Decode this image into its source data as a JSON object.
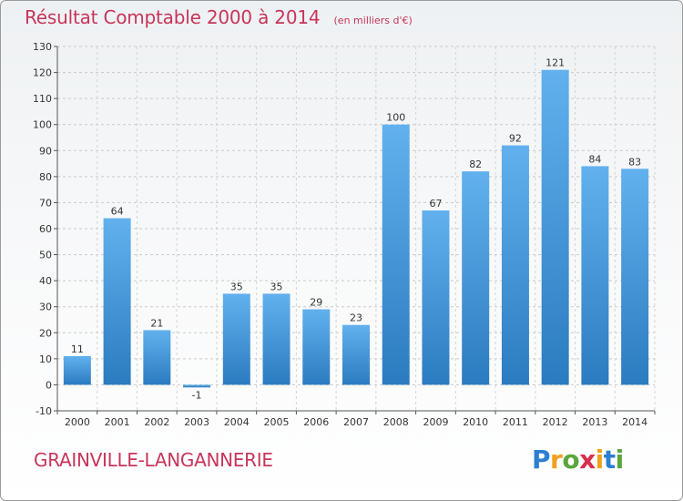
{
  "header": {
    "title": "Résultat Comptable 2000 à 2014",
    "subtitle": "(en milliers d'€)"
  },
  "footer": {
    "city": "GRAINVILLE-LANGANNERIE",
    "logo": "Proxiti"
  },
  "colors": {
    "title": "#c8355a",
    "bar_light": "#5aaaea",
    "bar_dark": "#2e7fc4",
    "grid": "#c9c9c9"
  },
  "chart_data": {
    "type": "bar",
    "categories": [
      "2000",
      "2001",
      "2002",
      "2003",
      "2004",
      "2005",
      "2006",
      "2007",
      "2008",
      "2009",
      "2010",
      "2011",
      "2012",
      "2013",
      "2014"
    ],
    "values": [
      11,
      64,
      21,
      -1,
      35,
      35,
      29,
      23,
      100,
      67,
      82,
      92,
      121,
      84,
      83
    ],
    "value_labels": [
      "11",
      "64",
      "21",
      "-1",
      "35",
      "35",
      "29",
      "23",
      "100",
      "67",
      "82",
      "92",
      "121",
      "84",
      "83"
    ],
    "y_ticks": [
      "-10",
      "0",
      "10",
      "20",
      "30",
      "40",
      "50",
      "60",
      "70",
      "80",
      "90",
      "100",
      "110",
      "120",
      "130"
    ],
    "ylim": [
      -10,
      130
    ],
    "grid": true,
    "title": "Résultat Comptable 2000 à 2014",
    "xlabel": "",
    "ylabel": ""
  }
}
